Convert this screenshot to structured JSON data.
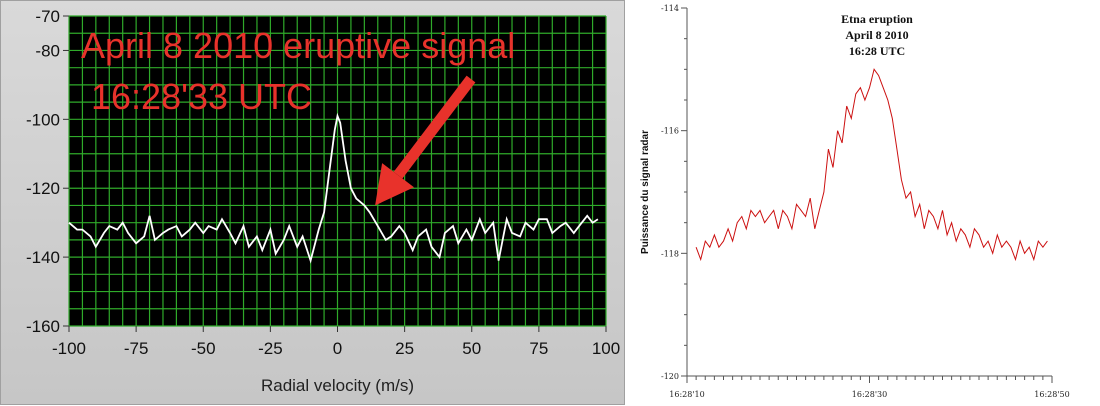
{
  "chart_data": [
    {
      "type": "line",
      "xlabel": "Radial velocity (m/s)",
      "ylabel": "",
      "xlim": [
        -100,
        100
      ],
      "ylim": [
        -160,
        -70
      ],
      "xticks": [
        -100,
        -75,
        -50,
        -25,
        0,
        25,
        50,
        75,
        100
      ],
      "yticks": [
        -70,
        -80,
        -100,
        -120,
        -140,
        -160
      ],
      "grid": true,
      "background": "#000000",
      "grid_color": "#2faa2a",
      "line_color": "#ffffff",
      "annotation": {
        "lines": [
          "April 8 2010 eruptive signal",
          "16:28'33 UTC"
        ],
        "color": "#e8322b",
        "arrow_points_to": [
          14,
          -125
        ]
      },
      "series": [
        {
          "x": [
            -100,
            -97,
            -95,
            -92,
            -90,
            -87,
            -85,
            -82,
            -80,
            -78,
            -75,
            -72,
            -70,
            -68,
            -65,
            -63,
            -60,
            -58,
            -55,
            -53,
            -50,
            -48,
            -45,
            -43,
            -40,
            -38,
            -35,
            -33,
            -30,
            -28,
            -25,
            -23,
            -20,
            -18,
            -15,
            -13,
            -10,
            -7,
            -5,
            -3,
            -1,
            0,
            1,
            3,
            5,
            7,
            10,
            12,
            15,
            18,
            20,
            23,
            25,
            28,
            30,
            33,
            35,
            38,
            40,
            43,
            45,
            48,
            50,
            53,
            55,
            58,
            60,
            63,
            65,
            68,
            70,
            73,
            75,
            78,
            80,
            83,
            85,
            88,
            90,
            93,
            95,
            97
          ],
          "y": [
            -130,
            -132,
            -132,
            -134,
            -137,
            -133,
            -131,
            -132,
            -130,
            -133,
            -136,
            -134,
            -128,
            -135,
            -133,
            -132,
            -131,
            -134,
            -132,
            -130,
            -133,
            -131,
            -132,
            -129,
            -133,
            -136,
            -131,
            -137,
            -134,
            -138,
            -132,
            -139,
            -135,
            -131,
            -137,
            -134,
            -141,
            -132,
            -127,
            -115,
            -103,
            -99,
            -101,
            -112,
            -120,
            -123,
            -125,
            -127,
            -131,
            -135,
            -134,
            -131,
            -133,
            -138,
            -134,
            -132,
            -137,
            -140,
            -133,
            -131,
            -136,
            -132,
            -135,
            -129,
            -133,
            -130,
            -141,
            -129,
            -133,
            -134,
            -130,
            -132,
            -129,
            -129,
            -133,
            -131,
            -130,
            -133,
            -131,
            -128,
            -130,
            -129
          ]
        }
      ]
    },
    {
      "type": "line",
      "title": [
        "Etna eruption",
        "April 8 2010",
        "16:28 UTC"
      ],
      "ylabel": "Puissance du signal radar",
      "xlabel": "",
      "ylim": [
        -120,
        -114
      ],
      "yticks": [
        -114,
        -116,
        -118,
        -120
      ],
      "xticks": [
        "16:28'10",
        "16:28'30",
        "16:28'50"
      ],
      "xlim_seconds": [
        10,
        50
      ],
      "grid": false,
      "line_color": "#cc1010",
      "series": [
        {
          "x": [
            11,
            11.5,
            12,
            12.5,
            13,
            13.5,
            14,
            14.5,
            15,
            15.5,
            16,
            16.5,
            17,
            17.5,
            18,
            18.5,
            19,
            19.5,
            20,
            20.5,
            21,
            21.5,
            22,
            22.5,
            23,
            23.5,
            24,
            24.5,
            25,
            25.5,
            26,
            26.5,
            27,
            27.5,
            28,
            28.5,
            29,
            29.5,
            30,
            30.5,
            31,
            31.5,
            32,
            32.5,
            33,
            33.5,
            34,
            34.5,
            35,
            35.5,
            36,
            36.5,
            37,
            37.5,
            38,
            38.5,
            39,
            39.5,
            40,
            40.5,
            41,
            41.5,
            42,
            42.5,
            43,
            43.5,
            44,
            44.5,
            45,
            45.5,
            46,
            46.5,
            47,
            47.5,
            48,
            48.5,
            49,
            49.5
          ],
          "y": [
            -117.9,
            -118.1,
            -117.8,
            -117.9,
            -117.7,
            -117.9,
            -117.8,
            -117.6,
            -117.8,
            -117.5,
            -117.4,
            -117.6,
            -117.3,
            -117.4,
            -117.3,
            -117.5,
            -117.4,
            -117.3,
            -117.6,
            -117.3,
            -117.4,
            -117.6,
            -117.2,
            -117.3,
            -117.4,
            -117.1,
            -117.6,
            -117.3,
            -117.0,
            -116.3,
            -116.6,
            -116.0,
            -116.2,
            -115.6,
            -115.8,
            -115.4,
            -115.3,
            -115.5,
            -115.3,
            -115.0,
            -115.1,
            -115.3,
            -115.5,
            -115.8,
            -116.3,
            -116.8,
            -117.1,
            -117.0,
            -117.4,
            -117.2,
            -117.6,
            -117.3,
            -117.4,
            -117.6,
            -117.3,
            -117.7,
            -117.5,
            -117.8,
            -117.6,
            -117.7,
            -117.9,
            -117.6,
            -117.7,
            -117.9,
            -117.8,
            -118.0,
            -117.7,
            -117.9,
            -117.8,
            -117.9,
            -118.1,
            -117.8,
            -118.0,
            -117.9,
            -118.1,
            -117.8,
            -117.9,
            -117.8
          ]
        }
      ]
    }
  ]
}
